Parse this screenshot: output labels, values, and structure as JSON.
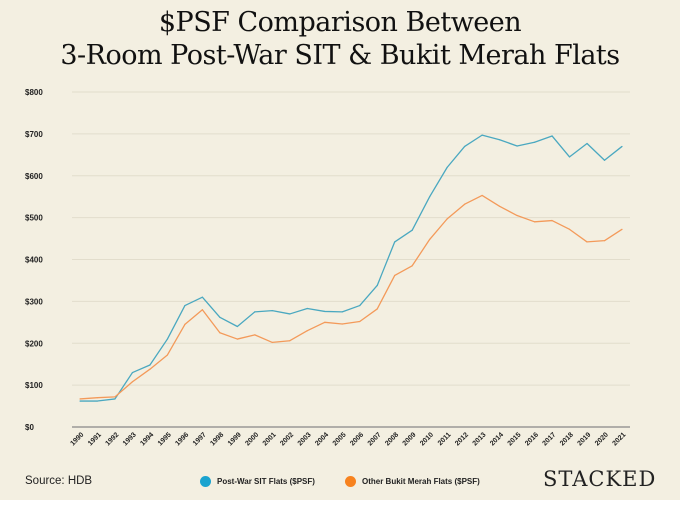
{
  "chart_data": {
    "type": "line",
    "title": "$PSF Comparison Between 3-Room Post-War SIT & Bukit Merah Flats",
    "title_lines": [
      "$PSF Comparison Between",
      "3-Room Post-War SIT & Bukit Merah Flats"
    ],
    "xlabel": "",
    "ylabel": "",
    "ylim": [
      0,
      800
    ],
    "yticks": [
      0,
      100,
      200,
      300,
      400,
      500,
      600,
      700,
      800
    ],
    "ytick_labels": [
      "$0",
      "$100",
      "$200",
      "$300",
      "$400",
      "$500",
      "$600",
      "$700",
      "$800"
    ],
    "grid": true,
    "x": [
      "1990",
      "1991",
      "1992",
      "1993",
      "1994",
      "1995",
      "1996",
      "1997",
      "1998",
      "1999",
      "2000",
      "2001",
      "2002",
      "2003",
      "2004",
      "2005",
      "2006",
      "2007",
      "2008",
      "2009",
      "2010",
      "2011",
      "2012",
      "2013",
      "2014",
      "2015",
      "2016",
      "2017",
      "2018",
      "2019",
      "2020",
      "2021"
    ],
    "series": [
      {
        "name": "Post-War SIT Flats ($PSF)",
        "color": "#4aa8c0",
        "values": [
          62,
          62,
          67,
          130,
          148,
          210,
          290,
          310,
          262,
          240,
          275,
          278,
          270,
          283,
          276,
          275,
          290,
          338,
          442,
          470,
          550,
          620,
          670,
          697,
          686,
          671,
          680,
          695,
          645,
          677,
          637,
          670
        ]
      },
      {
        "name": "Other Bukit Merah Flats ($PSF)",
        "color": "#f39a5a",
        "values": [
          67,
          70,
          72,
          108,
          138,
          172,
          245,
          280,
          225,
          210,
          220,
          202,
          206,
          230,
          250,
          246,
          252,
          282,
          362,
          385,
          448,
          497,
          532,
          553,
          527,
          505,
          490,
          493,
          472,
          442,
          445,
          472
        ]
      }
    ],
    "legend_position": "bottom-center"
  },
  "legend_colors": [
    "#1aa3cf",
    "#f7821e"
  ],
  "source": "Source: HDB",
  "logo": "STACKED"
}
